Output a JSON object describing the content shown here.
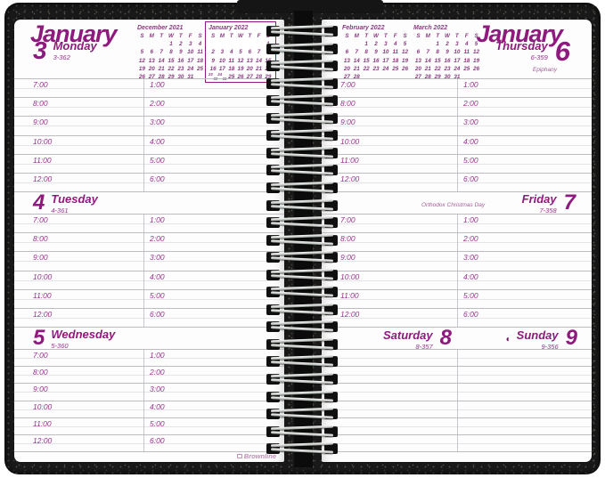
{
  "brand": {
    "logo_text": "Brownline"
  },
  "colors": {
    "accent": "#8e1a7d",
    "time_label": "#9b3190",
    "hour_line": "#bcbcc1",
    "half_hour_line": "#e6e4e8",
    "cover": "#191919",
    "logo": "#bd8fb5"
  },
  "left_page": {
    "month": "January"
  },
  "right_page": {
    "month": "January"
  },
  "day_of_week_header": [
    "S",
    "M",
    "T",
    "W",
    "T",
    "F",
    "S"
  ],
  "mini_calendars": [
    {
      "title": "December 2021",
      "boxed": false,
      "weeks": [
        [
          "",
          "",
          "",
          "1",
          "2",
          "3",
          "4"
        ],
        [
          "5",
          "6",
          "7",
          "8",
          "9",
          "10",
          "11"
        ],
        [
          "12",
          "13",
          "14",
          "15",
          "16",
          "17",
          "18"
        ],
        [
          "19",
          "20",
          "21",
          "22",
          "23",
          "24",
          "25"
        ],
        [
          "26",
          "27",
          "28",
          "29",
          "30",
          "31",
          ""
        ]
      ]
    },
    {
      "title": "January 2022",
      "boxed": true,
      "weeks": [
        [
          "",
          "",
          "",
          "",
          "",
          "",
          "1"
        ],
        [
          "2",
          "3",
          "4",
          "5",
          "6",
          "7",
          "8"
        ],
        [
          "9",
          "10",
          "11",
          "12",
          "13",
          "14",
          "15"
        ],
        [
          "16",
          "17",
          "18",
          "19",
          "20",
          "21",
          "22"
        ],
        [
          "23/30",
          "24/31",
          "25",
          "26",
          "27",
          "28",
          "29"
        ]
      ]
    },
    {
      "title": "February 2022",
      "boxed": false,
      "weeks": [
        [
          "",
          "",
          "1",
          "2",
          "3",
          "4",
          "5"
        ],
        [
          "6",
          "7",
          "8",
          "9",
          "10",
          "11",
          "12"
        ],
        [
          "13",
          "14",
          "15",
          "16",
          "17",
          "18",
          "19"
        ],
        [
          "20",
          "21",
          "22",
          "23",
          "24",
          "25",
          "26"
        ],
        [
          "27",
          "28",
          "",
          "",
          "",
          "",
          ""
        ]
      ]
    },
    {
      "title": "March 2022",
      "boxed": false,
      "weeks": [
        [
          "",
          "",
          "1",
          "2",
          "3",
          "4",
          "5"
        ],
        [
          "6",
          "7",
          "8",
          "9",
          "10",
          "11",
          "12"
        ],
        [
          "13",
          "14",
          "15",
          "16",
          "17",
          "18",
          "19"
        ],
        [
          "20",
          "21",
          "22",
          "23",
          "24",
          "25",
          "26"
        ],
        [
          "27",
          "28",
          "29",
          "30",
          "31",
          "",
          ""
        ]
      ]
    }
  ],
  "days": [
    {
      "num": "3",
      "name": "Monday",
      "ordinal": "3-362"
    },
    {
      "num": "4",
      "name": "Tuesday",
      "ordinal": "4-361"
    },
    {
      "num": "5",
      "name": "Wednesday",
      "ordinal": "5-360"
    },
    {
      "num": "6",
      "name": "Thursday",
      "ordinal": "6-359",
      "note": "Epiphany"
    },
    {
      "num": "7",
      "name": "Friday",
      "ordinal": "7-358",
      "note": "Orthodox Christmas Day"
    },
    {
      "num": "8",
      "name": "Saturday",
      "ordinal": "8-357"
    },
    {
      "num": "9",
      "name": "Sunday",
      "ordinal": "9-356",
      "moon": "◐"
    }
  ],
  "time_slots": {
    "morning": [
      "7:00",
      "8:00",
      "9:00",
      "10:00",
      "11:00",
      "12:00"
    ],
    "afternoon": [
      "1:00",
      "2:00",
      "3:00",
      "4:00",
      "5:00",
      "6:00"
    ]
  }
}
